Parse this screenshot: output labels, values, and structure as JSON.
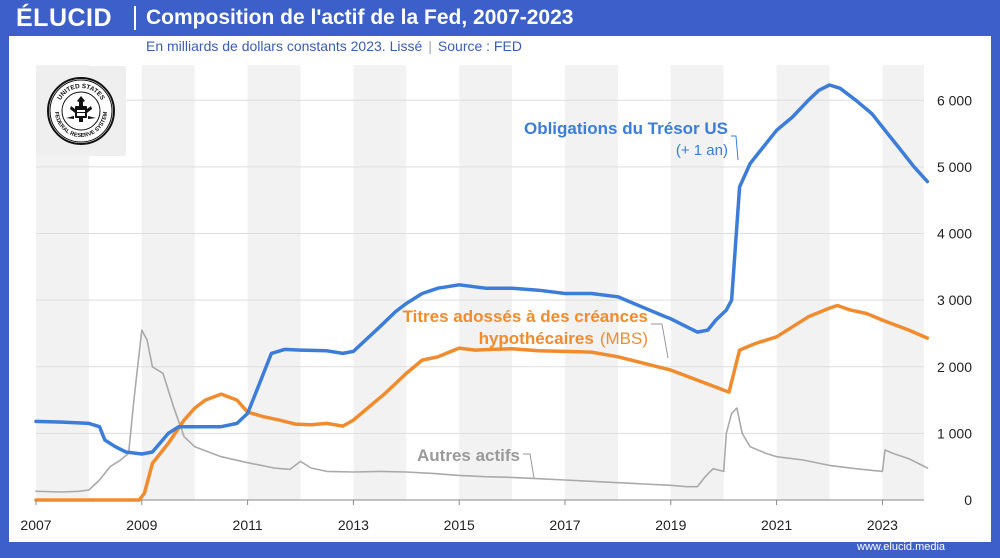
{
  "header": {
    "logo": "ÉLUCID",
    "title": "Composition de l'actif de la Fed, 2007-2023",
    "subtitle_main": "En milliards de dollars constants 2023. Lissé",
    "subtitle_sep": "|",
    "subtitle_source": "Source : FED"
  },
  "footer": {
    "url": "www.elucid.media"
  },
  "seal": {
    "icon": "federal-reserve-seal-icon",
    "text_top": "UNITED STATES",
    "text_bottom": "FEDERAL RESERVE SYSTEM"
  },
  "colors": {
    "treasury": "#3b7dd8",
    "mbs": "#f08c2e",
    "other": "#aaaaaa",
    "brand": "#3d5fc9",
    "band": "#f2f2f2"
  },
  "annotations": {
    "treasury_label": "Obligations du Trésor US",
    "treasury_note": "(+ 1 an)",
    "mbs_label_line1": "Titres adossés à des créances",
    "mbs_label_line2": "hypothécaires",
    "mbs_label_suffix": "(MBS)",
    "other_label": "Autres actifs"
  },
  "chart_data": {
    "type": "line",
    "title": "Composition de l'actif de la Fed, 2007-2023",
    "subtitle": "En milliards de dollars constants 2023. Lissé | Source : FED",
    "xlim": [
      2007,
      2023.85
    ],
    "ylim": [
      0,
      6500
    ],
    "x_ticks": [
      2007,
      2009,
      2011,
      2013,
      2015,
      2017,
      2019,
      2021,
      2023
    ],
    "y_ticks": [
      0,
      1000,
      2000,
      3000,
      4000,
      5000,
      6000
    ],
    "y_tick_labels": [
      "0",
      "1 000",
      "2 000",
      "3 000",
      "4 000",
      "5 000",
      "6 000"
    ],
    "shaded_years": [
      2007,
      2009,
      2011,
      2013,
      2015,
      2017,
      2019,
      2021,
      2023
    ],
    "series": [
      {
        "name": "Obligations du Trésor US",
        "key": "treasury",
        "points": [
          [
            2007,
            1180
          ],
          [
            2007.5,
            1170
          ],
          [
            2008,
            1150
          ],
          [
            2008.2,
            1100
          ],
          [
            2008.3,
            900
          ],
          [
            2008.5,
            800
          ],
          [
            2008.7,
            720
          ],
          [
            2009,
            690
          ],
          [
            2009.2,
            720
          ],
          [
            2009.5,
            1000
          ],
          [
            2009.7,
            1100
          ],
          [
            2010,
            1100
          ],
          [
            2010.5,
            1100
          ],
          [
            2010.8,
            1150
          ],
          [
            2011,
            1300
          ],
          [
            2011.2,
            1700
          ],
          [
            2011.45,
            2200
          ],
          [
            2011.7,
            2260
          ],
          [
            2012,
            2250
          ],
          [
            2012.5,
            2240
          ],
          [
            2012.8,
            2200
          ],
          [
            2013,
            2230
          ],
          [
            2013.2,
            2380
          ],
          [
            2013.5,
            2600
          ],
          [
            2013.8,
            2830
          ],
          [
            2014,
            2950
          ],
          [
            2014.3,
            3100
          ],
          [
            2014.6,
            3180
          ],
          [
            2015,
            3230
          ],
          [
            2015.5,
            3180
          ],
          [
            2016,
            3180
          ],
          [
            2016.5,
            3150
          ],
          [
            2017,
            3100
          ],
          [
            2017.5,
            3100
          ],
          [
            2018,
            3050
          ],
          [
            2018.3,
            2950
          ],
          [
            2018.6,
            2850
          ],
          [
            2018.9,
            2750
          ],
          [
            2019,
            2720
          ],
          [
            2019.3,
            2600
          ],
          [
            2019.5,
            2520
          ],
          [
            2019.7,
            2550
          ],
          [
            2019.85,
            2700
          ],
          [
            2020.05,
            2850
          ],
          [
            2020.15,
            3000
          ],
          [
            2020.3,
            4700
          ],
          [
            2020.5,
            5050
          ],
          [
            2020.8,
            5350
          ],
          [
            2021,
            5550
          ],
          [
            2021.3,
            5750
          ],
          [
            2021.6,
            6000
          ],
          [
            2021.8,
            6150
          ],
          [
            2022,
            6230
          ],
          [
            2022.2,
            6180
          ],
          [
            2022.5,
            6000
          ],
          [
            2022.8,
            5800
          ],
          [
            2023,
            5600
          ],
          [
            2023.3,
            5300
          ],
          [
            2023.6,
            5000
          ],
          [
            2023.85,
            4780
          ]
        ]
      },
      {
        "name": "Titres adossés à des créances hypothécaires (MBS)",
        "key": "mbs",
        "points": [
          [
            2007,
            0
          ],
          [
            2008.5,
            0
          ],
          [
            2008.95,
            0
          ],
          [
            2009.05,
            100
          ],
          [
            2009.2,
            550
          ],
          [
            2009.5,
            850
          ],
          [
            2009.8,
            1200
          ],
          [
            2010,
            1380
          ],
          [
            2010.2,
            1500
          ],
          [
            2010.5,
            1590
          ],
          [
            2010.8,
            1500
          ],
          [
            2011,
            1320
          ],
          [
            2011.3,
            1250
          ],
          [
            2011.6,
            1200
          ],
          [
            2011.9,
            1140
          ],
          [
            2012.2,
            1130
          ],
          [
            2012.5,
            1150
          ],
          [
            2012.8,
            1110
          ],
          [
            2013,
            1200
          ],
          [
            2013.3,
            1400
          ],
          [
            2013.6,
            1600
          ],
          [
            2014,
            1900
          ],
          [
            2014.3,
            2100
          ],
          [
            2014.6,
            2150
          ],
          [
            2015,
            2280
          ],
          [
            2015.3,
            2250
          ],
          [
            2015.6,
            2260
          ],
          [
            2016,
            2270
          ],
          [
            2016.5,
            2240
          ],
          [
            2017,
            2230
          ],
          [
            2017.5,
            2220
          ],
          [
            2018,
            2150
          ],
          [
            2018.5,
            2050
          ],
          [
            2019,
            1950
          ],
          [
            2019.5,
            1800
          ],
          [
            2020,
            1650
          ],
          [
            2020.1,
            1620
          ],
          [
            2020.3,
            2250
          ],
          [
            2020.6,
            2350
          ],
          [
            2021,
            2450
          ],
          [
            2021.3,
            2600
          ],
          [
            2021.6,
            2750
          ],
          [
            2022,
            2880
          ],
          [
            2022.15,
            2920
          ],
          [
            2022.4,
            2850
          ],
          [
            2022.7,
            2800
          ],
          [
            2023,
            2700
          ],
          [
            2023.5,
            2550
          ],
          [
            2023.85,
            2430
          ]
        ]
      },
      {
        "name": "Autres actifs",
        "key": "other",
        "points": [
          [
            2007,
            130
          ],
          [
            2007.5,
            120
          ],
          [
            2007.8,
            130
          ],
          [
            2008,
            150
          ],
          [
            2008.2,
            300
          ],
          [
            2008.4,
            500
          ],
          [
            2008.6,
            600
          ],
          [
            2008.75,
            700
          ],
          [
            2008.85,
            1500
          ],
          [
            2009,
            2550
          ],
          [
            2009.1,
            2400
          ],
          [
            2009.2,
            2000
          ],
          [
            2009.4,
            1900
          ],
          [
            2009.6,
            1400
          ],
          [
            2009.8,
            950
          ],
          [
            2010,
            800
          ],
          [
            2010.5,
            650
          ],
          [
            2011,
            560
          ],
          [
            2011.5,
            480
          ],
          [
            2011.8,
            460
          ],
          [
            2012,
            580
          ],
          [
            2012.2,
            480
          ],
          [
            2012.5,
            430
          ],
          [
            2013,
            420
          ],
          [
            2013.5,
            430
          ],
          [
            2014,
            420
          ],
          [
            2014.5,
            400
          ],
          [
            2015,
            370
          ],
          [
            2015.5,
            350
          ],
          [
            2016,
            340
          ],
          [
            2016.5,
            320
          ],
          [
            2017,
            300
          ],
          [
            2017.5,
            280
          ],
          [
            2018,
            260
          ],
          [
            2018.5,
            240
          ],
          [
            2019,
            220
          ],
          [
            2019.3,
            200
          ],
          [
            2019.5,
            200
          ],
          [
            2019.65,
            350
          ],
          [
            2019.8,
            470
          ],
          [
            2020,
            430
          ],
          [
            2020.05,
            1000
          ],
          [
            2020.15,
            1300
          ],
          [
            2020.25,
            1380
          ],
          [
            2020.35,
            1000
          ],
          [
            2020.5,
            800
          ],
          [
            2020.8,
            700
          ],
          [
            2021,
            650
          ],
          [
            2021.5,
            600
          ],
          [
            2022,
            520
          ],
          [
            2022.5,
            470
          ],
          [
            2023,
            430
          ],
          [
            2023.05,
            750
          ],
          [
            2023.2,
            700
          ],
          [
            2023.5,
            620
          ],
          [
            2023.85,
            480
          ]
        ]
      }
    ]
  }
}
